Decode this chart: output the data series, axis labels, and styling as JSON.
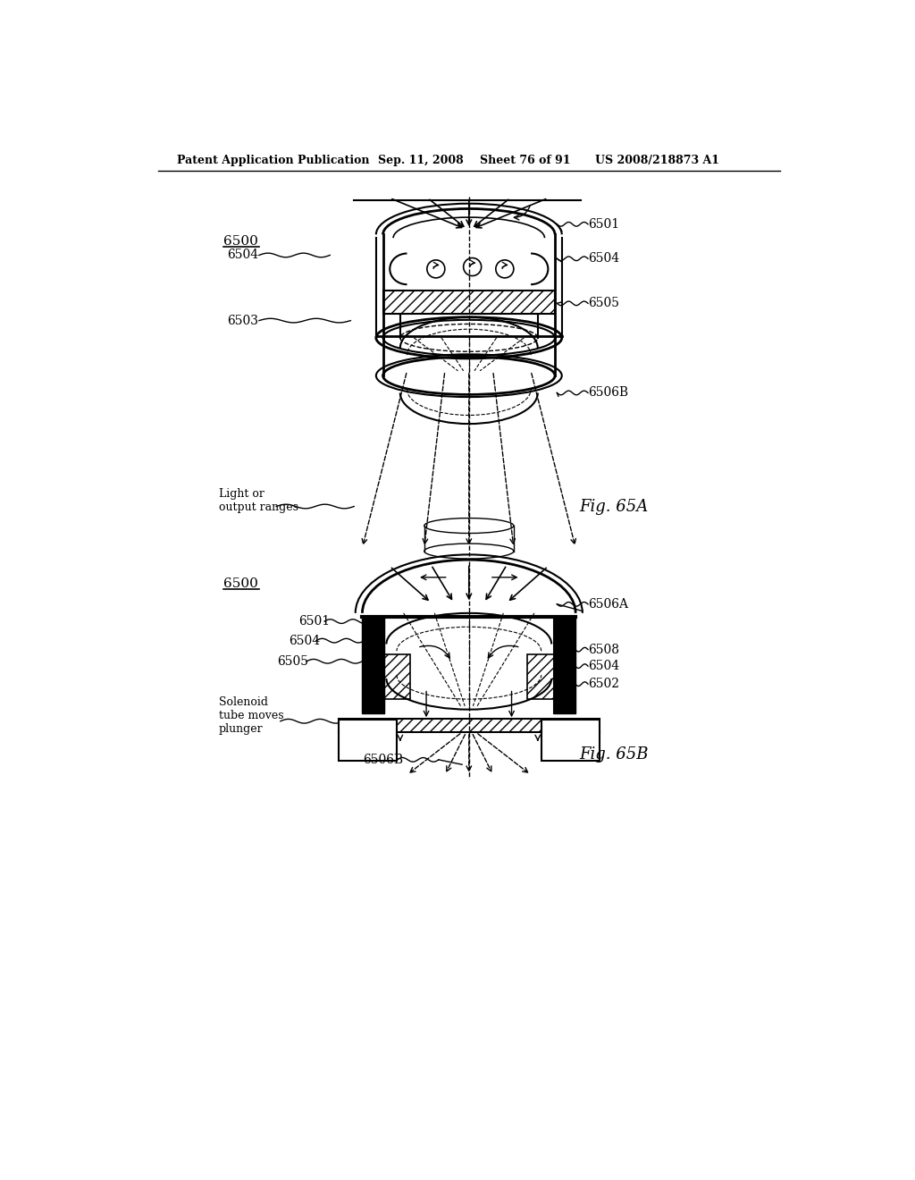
{
  "bg_color": "#ffffff",
  "line_color": "#000000",
  "header_text": "Patent Application Publication",
  "header_date": "Sep. 11, 2008",
  "header_sheet": "Sheet 76 of 91",
  "header_patent": "US 2008/218873 A1",
  "fig_a_label": "Fig. 65A",
  "fig_b_label": "Fig. 65B",
  "label_6500": "6500",
  "label_6501": "6501",
  "label_6502": "6502",
  "label_6503": "6503",
  "label_6504": "6504",
  "label_6505": "6505",
  "label_6506A": "6506A",
  "label_6506B": "6506B",
  "label_6508": "6508",
  "label_light": "Light or\noutput ranges",
  "label_solenoid": "Solenoid\ntube moves\nplunger"
}
